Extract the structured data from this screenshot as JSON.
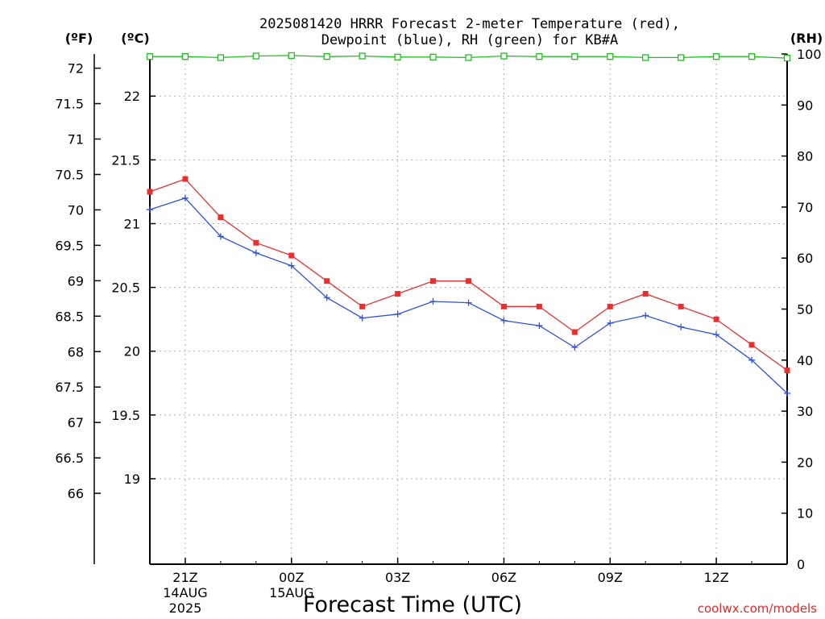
{
  "chart_data": {
    "type": "line",
    "title_lines": [
      "2025081420 HRRR Forecast 2-meter Temperature (red),",
      "Dewpoint (blue), RH (green) for KB#A"
    ],
    "xlabel": "Forecast Time (UTC)",
    "credit": "coolwx.com/models",
    "units": {
      "fahrenheit": "(ºF)",
      "celsius": "(ºC)",
      "rh": "(RH)"
    },
    "x_hours": [
      0,
      1,
      2,
      3,
      4,
      5,
      6,
      7,
      8,
      9,
      10,
      11,
      12,
      13,
      14,
      15,
      16,
      17,
      18
    ],
    "x_ticks": [
      {
        "hour": 1,
        "lines": [
          "21Z",
          "14AUG",
          "2025"
        ]
      },
      {
        "hour": 4,
        "lines": [
          "00Z",
          "15AUG"
        ]
      },
      {
        "hour": 7,
        "lines": [
          "03Z"
        ]
      },
      {
        "hour": 10,
        "lines": [
          "06Z"
        ]
      },
      {
        "hour": 13,
        "lines": [
          "09Z"
        ]
      },
      {
        "hour": 16,
        "lines": [
          "12Z"
        ]
      }
    ],
    "celsius_axis": {
      "range": [
        18.33,
        22.33
      ],
      "ticks": [
        "19",
        "19.5",
        "20",
        "20.5",
        "21",
        "21.5",
        "22"
      ]
    },
    "fahrenheit_axis": {
      "range": [
        65,
        72.2
      ],
      "ticks": [
        "66",
        "66.5",
        "67",
        "67.5",
        "68",
        "68.5",
        "69",
        "69.5",
        "70",
        "70.5",
        "71",
        "71.5",
        "72"
      ]
    },
    "rh_axis": {
      "range": [
        0,
        100
      ],
      "ticks": [
        "0",
        "10",
        "20",
        "30",
        "40",
        "50",
        "60",
        "70",
        "80",
        "90",
        "100"
      ]
    },
    "grid": true,
    "series": [
      {
        "name": "Temperature",
        "unit": "C",
        "color": "#e83030",
        "marker": "filled-square",
        "values": [
          21.25,
          21.35,
          21.05,
          20.85,
          20.75,
          20.55,
          20.35,
          20.45,
          20.55,
          20.55,
          20.35,
          20.35,
          20.15,
          20.35,
          20.45,
          20.35,
          20.25,
          20.05,
          19.85
        ]
      },
      {
        "name": "Dewpoint",
        "unit": "C",
        "color": "#3050e0",
        "marker": "plus",
        "values": [
          21.11,
          21.2,
          20.9,
          20.77,
          20.67,
          20.42,
          20.26,
          20.29,
          20.39,
          20.38,
          20.24,
          20.2,
          20.03,
          20.22,
          20.28,
          20.19,
          20.13,
          19.93,
          19.67
        ]
      },
      {
        "name": "RH",
        "unit": "%",
        "color": "#20c020",
        "marker": "open-square",
        "values": [
          99.5,
          99.5,
          99.3,
          99.6,
          99.7,
          99.5,
          99.6,
          99.4,
          99.4,
          99.3,
          99.6,
          99.5,
          99.5,
          99.5,
          99.3,
          99.3,
          99.5,
          99.5,
          99.2
        ]
      }
    ]
  }
}
